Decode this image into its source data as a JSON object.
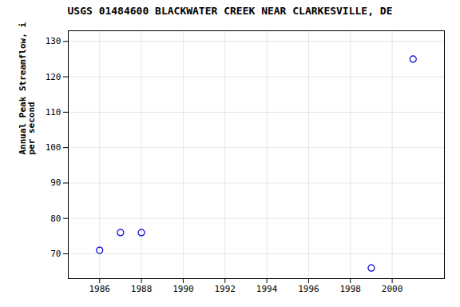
{
  "chart_data": {
    "type": "scatter",
    "title": "USGS 01484600 BLACKWATER CREEK NEAR CLARKESVILLE, DE",
    "ylabel": "Annual Peak Streamflow, in cubic feet\nper second",
    "x": [
      1986,
      1987,
      1988,
      1999,
      2001
    ],
    "values": [
      71,
      76,
      76,
      66,
      125
    ],
    "xlim": [
      1984.5,
      2002.5
    ],
    "ylim": [
      63,
      133
    ],
    "xticks": [
      1986,
      1988,
      1990,
      1992,
      1994,
      1996,
      1998,
      2000
    ],
    "yticks": [
      70,
      80,
      90,
      100,
      110,
      120,
      130
    ],
    "color": "#0000cc",
    "marker": "circle",
    "grid": true
  }
}
